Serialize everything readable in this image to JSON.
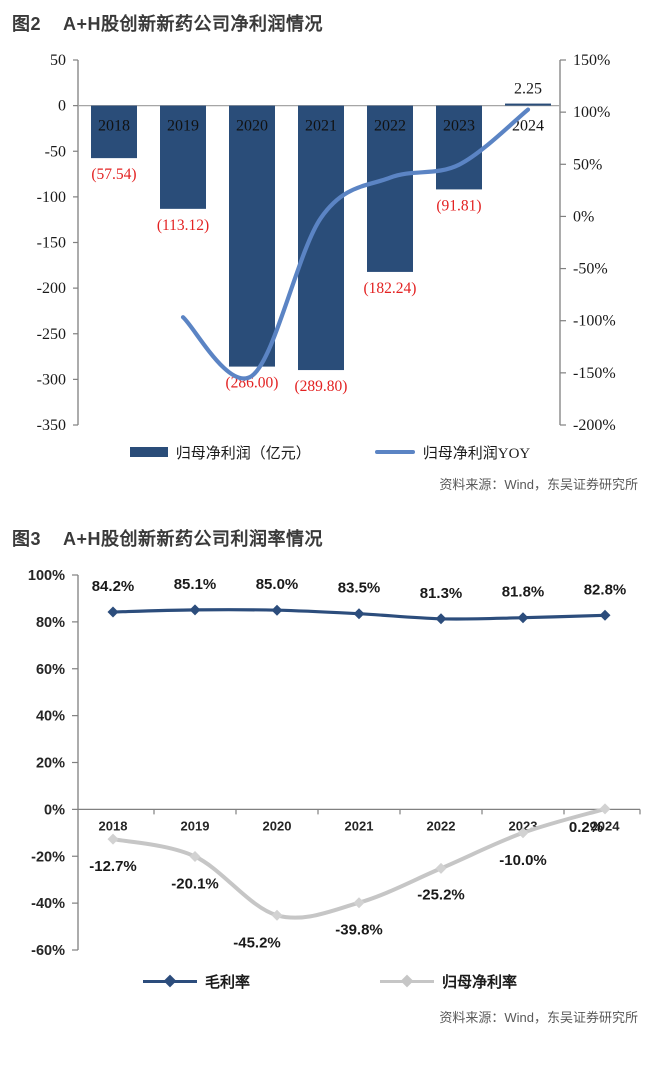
{
  "figure2": {
    "label": "图2",
    "title": "A+H股创新新药公司净利润情况",
    "source": "资料来源：Wind，东吴证券研究所",
    "legend": [
      {
        "label": "归母净利润（亿元）",
        "type": "bar",
        "color": "#2a4d79"
      },
      {
        "label": "归母净利润YOY",
        "type": "line",
        "color": "#5b84c4"
      }
    ],
    "colors": {
      "bar": "#2a4d79",
      "yoy_line": "#5b84c4",
      "value_label_negative": "#e32222",
      "value_label_positive": "#1a1a1a",
      "axis": "#808080",
      "tick_text": "#1a1a1a"
    },
    "chart_data": {
      "type": "bar",
      "categories": [
        "2018",
        "2019",
        "2020",
        "2021",
        "2022",
        "2023",
        "2024"
      ],
      "series": [
        {
          "name": "归母净利润（亿元）",
          "type": "bar",
          "axis": "left",
          "values": [
            -57.54,
            -113.12,
            -286.0,
            -289.8,
            -182.24,
            -91.81,
            2.25
          ],
          "labels": [
            "(57.54)",
            "(113.12)",
            "(286.00)",
            "(289.80)",
            "(182.24)",
            "(91.81)",
            "2.25"
          ]
        },
        {
          "name": "归母净利润YOY",
          "type": "line",
          "axis": "right",
          "values": [
            null,
            -96.6,
            -152.8,
            -1.3,
            37.1,
            49.6,
            102.4
          ]
        }
      ],
      "left_axis": {
        "min": -350,
        "max": 50,
        "step": 50,
        "ticks": [
          "50",
          "0",
          "-50",
          "-100",
          "-150",
          "-200",
          "-250",
          "-300",
          "-350"
        ]
      },
      "right_axis": {
        "min": -200,
        "max": 150,
        "step": 50,
        "ticks": [
          "150%",
          "100%",
          "50%",
          "0%",
          "-50%",
          "-100%",
          "-150%",
          "-200%"
        ]
      }
    }
  },
  "figure3": {
    "label": "图3",
    "title": "A+H股创新新药公司利润率情况",
    "source": "资料来源：Wind，东吴证券研究所",
    "legend": [
      {
        "label": "毛利率",
        "type": "line-marker",
        "color": "#2c4d7c"
      },
      {
        "label": "归母净利率",
        "type": "line-marker",
        "color": "#c6c6c6"
      }
    ],
    "colors": {
      "gross_margin": "#2c4d7c",
      "net_margin": "#c6c6c6",
      "axis": "#808080",
      "tick_text": "#262626",
      "data_label": "#1a1a1a"
    },
    "chart_data": {
      "type": "line",
      "categories": [
        "2018",
        "2019",
        "2020",
        "2021",
        "2022",
        "2023",
        "2024"
      ],
      "series": [
        {
          "name": "毛利率",
          "values": [
            84.2,
            85.1,
            85.0,
            83.5,
            81.3,
            81.8,
            82.8
          ],
          "labels": [
            "84.2%",
            "85.1%",
            "85.0%",
            "83.5%",
            "81.3%",
            "81.8%",
            "82.8%"
          ]
        },
        {
          "name": "归母净利率",
          "values": [
            -12.7,
            -20.1,
            -45.2,
            -39.8,
            -25.2,
            -10.0,
            0.2
          ],
          "labels": [
            "-12.7%",
            "-20.1%",
            "-45.2%",
            "-39.8%",
            "-25.2%",
            "-10.0%",
            "0.2%"
          ]
        }
      ],
      "y_axis": {
        "min": -60,
        "max": 100,
        "step": 20,
        "ticks": [
          "100%",
          "80%",
          "60%",
          "40%",
          "20%",
          "0%",
          "-20%",
          "-40%",
          "-60%"
        ]
      }
    }
  }
}
